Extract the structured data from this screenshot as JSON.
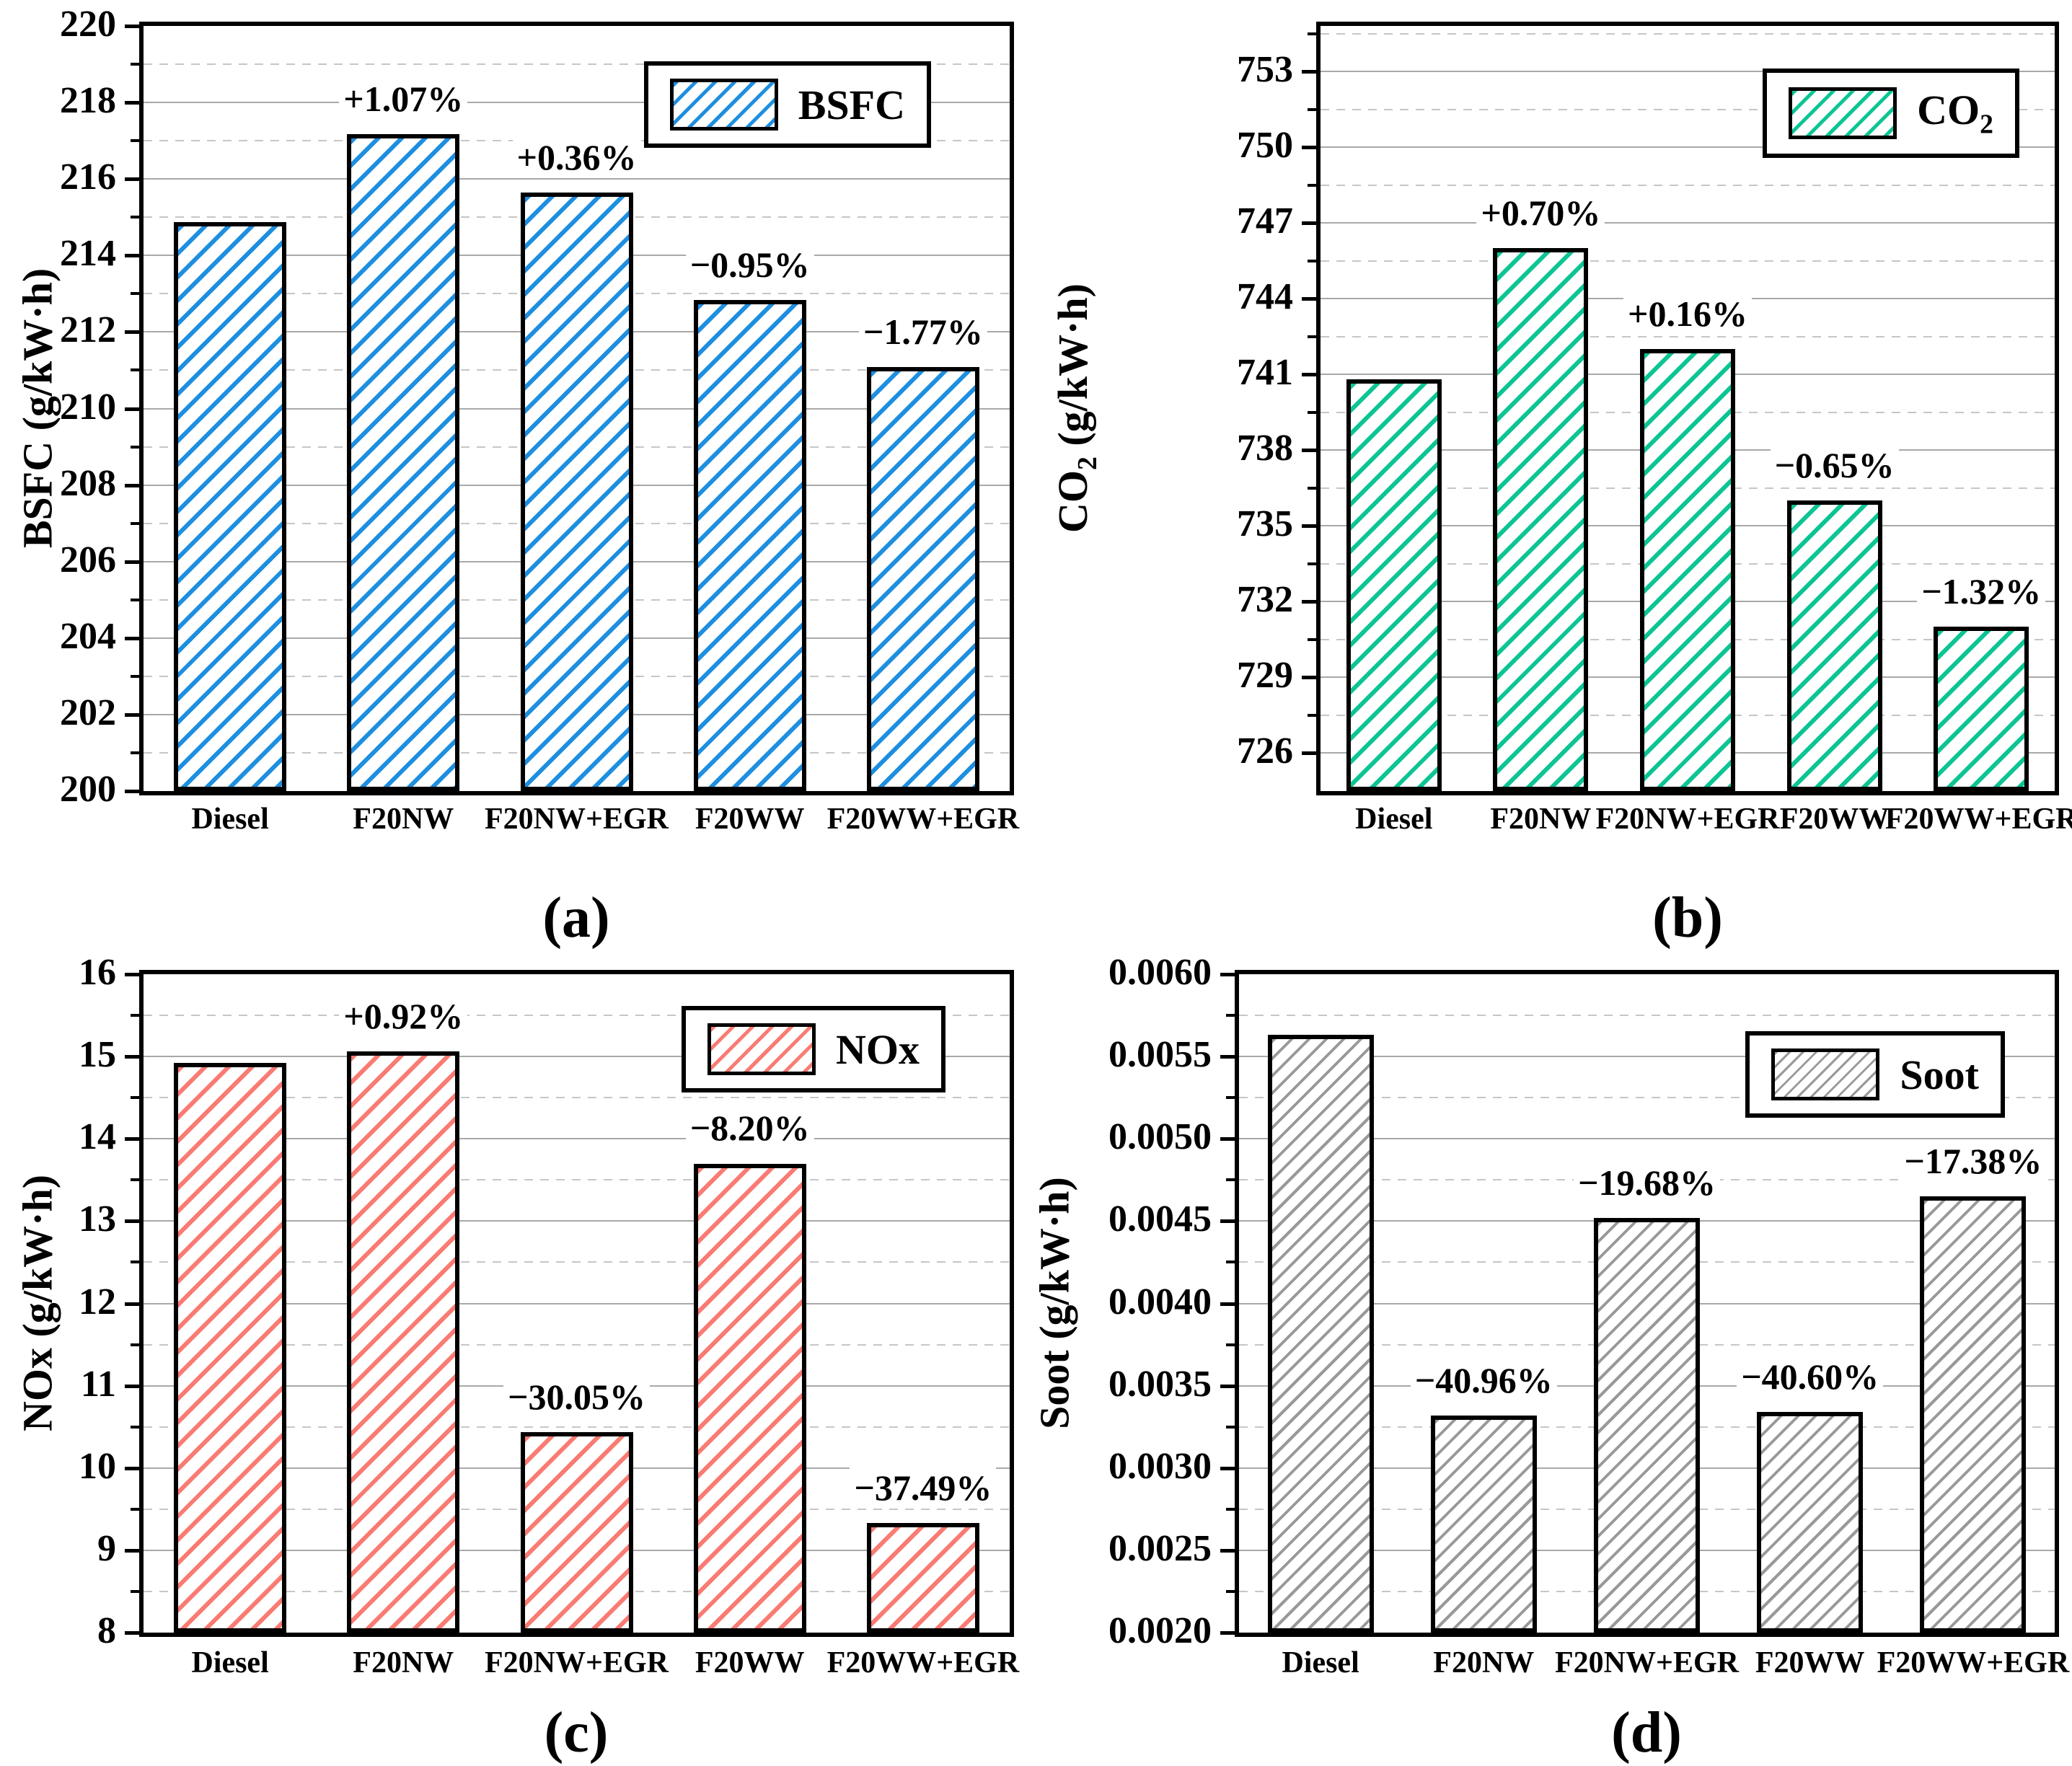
{
  "figure": {
    "categories": [
      "Diesel",
      "F20NW",
      "F20NW+EGR",
      "F20WW",
      "F20WW+EGR"
    ]
  },
  "chart_data": [
    {
      "key": "a",
      "type": "bar",
      "panel_label": "(a)",
      "legend": {
        "pre": "BSFC",
        "sub": "",
        "post": ""
      },
      "ylabel": {
        "pre": "BSFC (g/kW·h)",
        "sub": "",
        "post": ""
      },
      "categories": [
        "Diesel",
        "F20NW",
        "F20NW+EGR",
        "F20WW",
        "F20WW+EGR"
      ],
      "values": [
        214.88,
        217.18,
        215.65,
        212.84,
        211.08
      ],
      "annotations": [
        "",
        "+1.07%",
        "+0.36%",
        "−0.95%",
        "−1.77%"
      ],
      "ylim": [
        200,
        220
      ],
      "yticks": [
        {
          "v": 200,
          "label": "200"
        },
        {
          "v": 202,
          "label": "202"
        },
        {
          "v": 204,
          "label": "204"
        },
        {
          "v": 206,
          "label": "206"
        },
        {
          "v": 208,
          "label": "208"
        },
        {
          "v": 210,
          "label": "210"
        },
        {
          "v": 212,
          "label": "212"
        },
        {
          "v": 214,
          "label": "214"
        },
        {
          "v": 216,
          "label": "216"
        },
        {
          "v": 218,
          "label": "218"
        },
        {
          "v": 220,
          "label": "220"
        }
      ],
      "yminor": [
        201,
        203,
        205,
        207,
        209,
        211,
        213,
        215,
        217,
        219
      ],
      "bar_color": "#1E8FE0",
      "grid": true,
      "legend_position": "upper right"
    },
    {
      "key": "b",
      "type": "bar",
      "panel_label": "(b)",
      "legend": {
        "pre": "CO",
        "sub": "2",
        "post": ""
      },
      "ylabel": {
        "pre": "CO",
        "sub": "2",
        "post": " (g/kW·h)"
      },
      "categories": [
        "Diesel",
        "F20NW",
        "F20NW+EGR",
        "F20WW",
        "F20WW+EGR"
      ],
      "values": [
        740.8,
        746.0,
        742.0,
        736.0,
        731.0
      ],
      "annotations": [
        "",
        "+0.70%",
        "+0.16%",
        "−0.65%",
        "−1.32%"
      ],
      "ylim": [
        724.5,
        754.8
      ],
      "yticks": [
        {
          "v": 726,
          "label": "726"
        },
        {
          "v": 729,
          "label": "729"
        },
        {
          "v": 732,
          "label": "732"
        },
        {
          "v": 735,
          "label": "735"
        },
        {
          "v": 738,
          "label": "738"
        },
        {
          "v": 741,
          "label": "741"
        },
        {
          "v": 744,
          "label": "744"
        },
        {
          "v": 747,
          "label": "747"
        },
        {
          "v": 750,
          "label": "750"
        },
        {
          "v": 753,
          "label": "753"
        }
      ],
      "yminor": [
        727.5,
        730.5,
        733.5,
        736.5,
        739.5,
        742.5,
        745.5,
        748.5,
        751.5,
        754.5
      ],
      "bar_color": "#0CC593",
      "grid": true,
      "legend_position": "upper right"
    },
    {
      "key": "c",
      "type": "bar",
      "panel_label": "(c)",
      "legend": {
        "pre": "NOx",
        "sub": "",
        "post": ""
      },
      "ylabel": {
        "pre": "NOx (g/kW·h)",
        "sub": "",
        "post": ""
      },
      "categories": [
        "Diesel",
        "F20NW",
        "F20NW+EGR",
        "F20WW",
        "F20WW+EGR"
      ],
      "values": [
        14.92,
        15.06,
        10.44,
        13.7,
        9.33
      ],
      "annotations": [
        "",
        "+0.92%",
        "−30.05%",
        "−8.20%",
        "−37.49%"
      ],
      "ylim": [
        8,
        16
      ],
      "yticks": [
        {
          "v": 8,
          "label": "8"
        },
        {
          "v": 9,
          "label": "9"
        },
        {
          "v": 10,
          "label": "10"
        },
        {
          "v": 11,
          "label": "11"
        },
        {
          "v": 12,
          "label": "12"
        },
        {
          "v": 13,
          "label": "13"
        },
        {
          "v": 14,
          "label": "14"
        },
        {
          "v": 15,
          "label": "15"
        },
        {
          "v": 16,
          "label": "16"
        }
      ],
      "yminor": [
        8.5,
        9.5,
        10.5,
        11.5,
        12.5,
        13.5,
        14.5,
        15.5
      ],
      "bar_color": "#F97B73",
      "grid": true,
      "legend_position": "upper right"
    },
    {
      "key": "d",
      "type": "bar",
      "panel_label": "(d)",
      "legend": {
        "pre": "Soot",
        "sub": "",
        "post": ""
      },
      "ylabel": {
        "pre": "Soot (g/kW·h)",
        "sub": "",
        "post": ""
      },
      "categories": [
        "Diesel",
        "F20NW",
        "F20NW+EGR",
        "F20WW",
        "F20WW+EGR"
      ],
      "values": [
        0.00563,
        0.00332,
        0.00452,
        0.00334,
        0.00465
      ],
      "annotations": [
        "",
        "−40.96%",
        "−19.68%",
        "−40.60%",
        "−17.38%"
      ],
      "ylim": [
        0.002,
        0.006
      ],
      "yticks": [
        {
          "v": 0.002,
          "label": "0.0020"
        },
        {
          "v": 0.0025,
          "label": "0.0025"
        },
        {
          "v": 0.003,
          "label": "0.0030"
        },
        {
          "v": 0.0035,
          "label": "0.0035"
        },
        {
          "v": 0.004,
          "label": "0.0040"
        },
        {
          "v": 0.0045,
          "label": "0.0045"
        },
        {
          "v": 0.005,
          "label": "0.0050"
        },
        {
          "v": 0.0055,
          "label": "0.0055"
        },
        {
          "v": 0.006,
          "label": "0.0060"
        }
      ],
      "yminor": [
        0.00225,
        0.00275,
        0.00325,
        0.00375,
        0.00425,
        0.00475,
        0.00525,
        0.00575
      ],
      "bar_color": "#999999",
      "grid": true,
      "legend_position": "upper right"
    }
  ]
}
